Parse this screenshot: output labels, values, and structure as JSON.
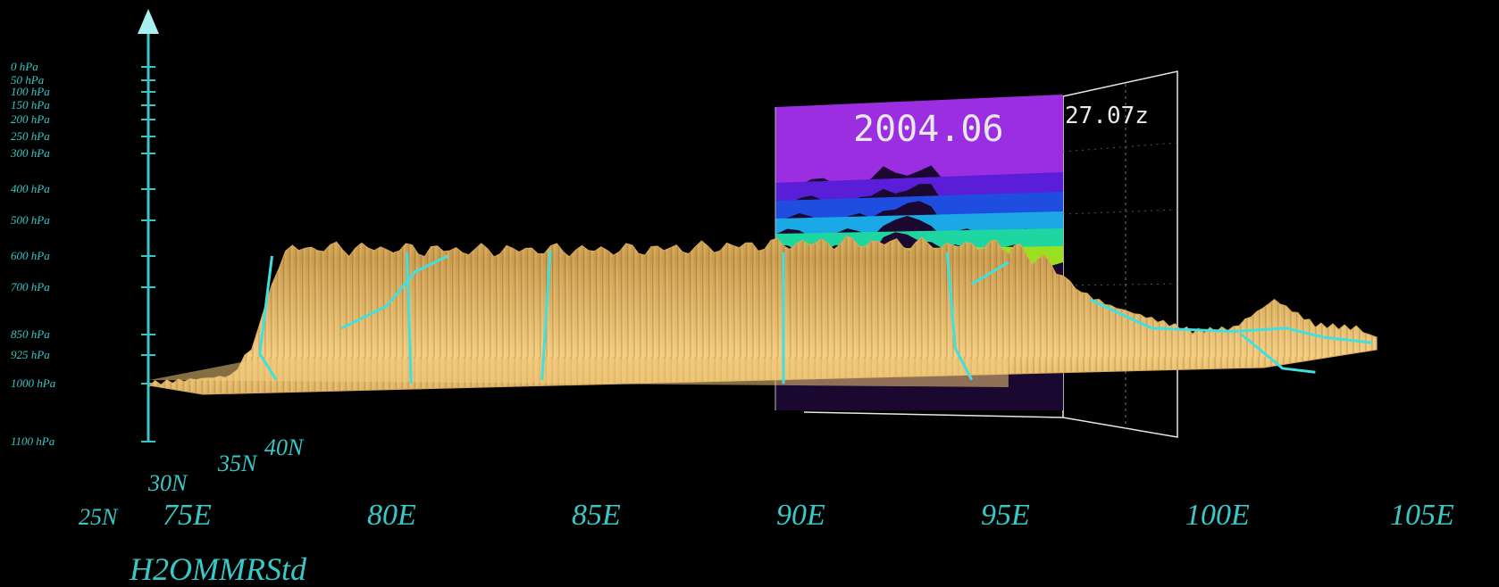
{
  "chart_data": {
    "type": "area",
    "title": "",
    "variable": "H2OMMRStd",
    "date": "2004.06",
    "time": "27.07z",
    "pressure_axis": {
      "ticks": [
        "0 hPa",
        "50 hPa",
        "100 hPa",
        "150 hPa",
        "200 hPa",
        "250 hPa",
        "300 hPa",
        "400 hPa",
        "500 hPa",
        "600 hPa",
        "700 hPa",
        "850 hPa",
        "925 hPa",
        "1000 hPa",
        "1100 hPa"
      ]
    },
    "lon_axis": {
      "ticks": [
        "75E",
        "80E",
        "85E",
        "90E",
        "95E",
        "100E",
        "105E"
      ],
      "values": [
        75,
        80,
        85,
        90,
        95,
        100,
        105
      ]
    },
    "lat_axis": {
      "ticks": [
        "25N",
        "30N",
        "35N",
        "40N"
      ]
    },
    "terrain_profile": {
      "lon": [
        74.5,
        75.5,
        76.5,
        77.0,
        77.5,
        78.0,
        80.0,
        82.0,
        84.0,
        86.0,
        88.0,
        90.0,
        92.0,
        94.0,
        95.5,
        96.5,
        97.0,
        98.0,
        99.0,
        100.0,
        101.0,
        102.0,
        103.0,
        104.0,
        104.5
      ],
      "top_pressure_hpa": [
        1000,
        990,
        980,
        900,
        700,
        600,
        590,
        585,
        580,
        585,
        590,
        590,
        590,
        595,
        600,
        620,
        700,
        760,
        800,
        840,
        830,
        740,
        820,
        830,
        860
      ]
    },
    "curtain_legend": {
      "colors": [
        "#9a2ee0",
        "#5a1ed8",
        "#1e4de0",
        "#1aa8e6",
        "#1ed6a0",
        "#9ae020"
      ]
    }
  },
  "colors": {
    "axis": "#38c8c8",
    "terrain": "#e8b860",
    "curtain_top": "#9a2ee0",
    "frame": "#e8e8e8"
  }
}
